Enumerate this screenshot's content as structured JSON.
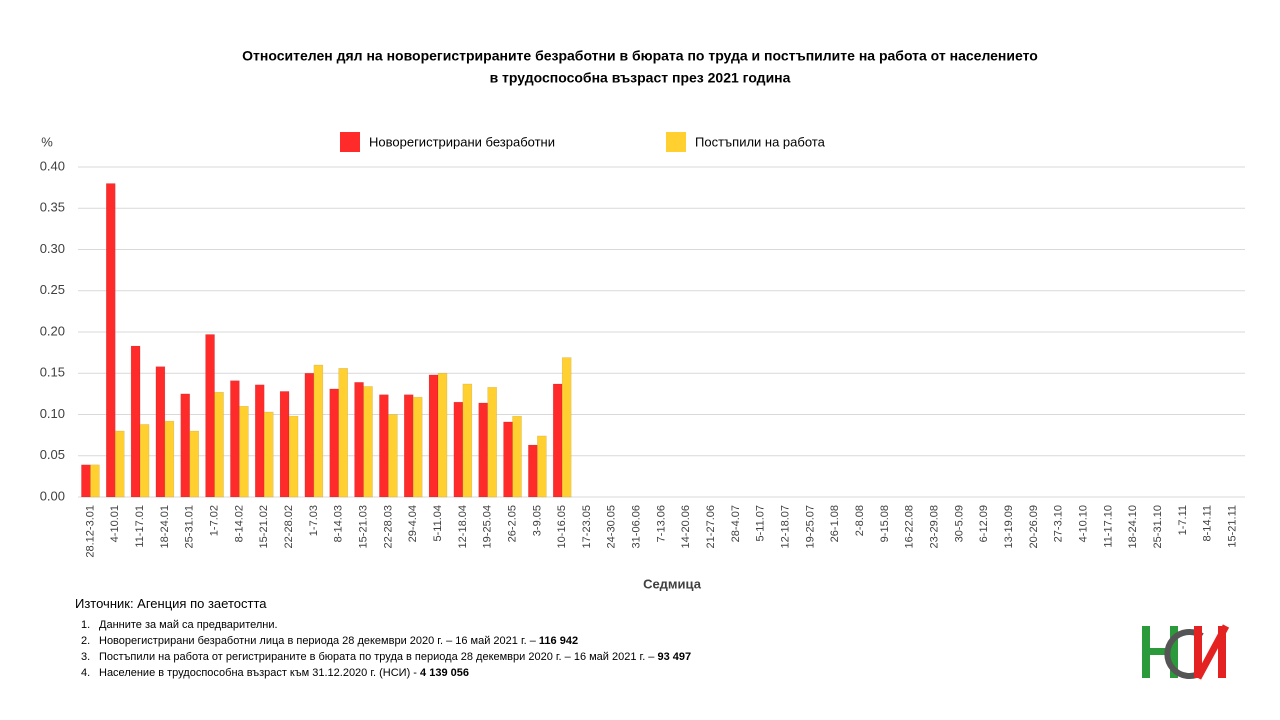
{
  "chart_data": {
    "type": "bar",
    "title": "Относителен дял на новорегистрираните безработни в бюрата по труда и постъпилите на работа от населението",
    "subtitle": "в трудоспособна възраст през 2021 година",
    "y_unit": "%",
    "x_label": "Седмица",
    "categories": [
      "28.12-3.01",
      "4-10.01",
      "11-17.01",
      "18-24.01",
      "25-31.01",
      "1-7.02",
      "8-14.02",
      "15-21.02",
      "22-28.02",
      "1-7.03",
      "8-14.03",
      "15-21.03",
      "22-28.03",
      "29-4.04",
      "5-11.04",
      "12-18.04",
      "19-25.04",
      "26-2.05",
      "3-9.05",
      "10-16.05",
      "17-23.05",
      "24-30.05",
      "31-06.06",
      "7-13.06",
      "14-20.06",
      "21-27.06",
      "28-4.07",
      "5-11.07",
      "12-18.07",
      "19-25.07",
      "26-1.08",
      "2-8.08",
      "9-15.08",
      "16-22.08",
      "23-29.08",
      "30-5.09",
      "6-12.09",
      "13-19.09",
      "20-26.09",
      "27-3.10",
      "4-10.10",
      "11-17.10",
      "18-24.10",
      "25-31.10",
      "1-7.11",
      "8-14.11",
      "15-21.11"
    ],
    "series": [
      {
        "name": "Новорегистрирани безработни",
        "color": "#ff2a2a",
        "values": [
          0.039,
          0.38,
          0.183,
          0.158,
          0.125,
          0.197,
          0.141,
          0.136,
          0.128,
          0.15,
          0.131,
          0.139,
          0.124,
          0.124,
          0.148,
          0.115,
          0.114,
          0.091,
          0.063,
          0.137,
          null,
          null,
          null,
          null,
          null,
          null,
          null,
          null,
          null,
          null,
          null,
          null,
          null,
          null,
          null,
          null,
          null,
          null,
          null,
          null,
          null,
          null,
          null,
          null,
          null,
          null,
          null
        ]
      },
      {
        "name": "Постъпили на работа",
        "color": "#ffd030",
        "values": [
          0.039,
          0.08,
          0.088,
          0.092,
          0.08,
          0.127,
          0.11,
          0.103,
          0.098,
          0.16,
          0.156,
          0.134,
          0.1,
          0.121,
          0.15,
          0.137,
          0.133,
          0.098,
          0.074,
          0.169,
          null,
          null,
          null,
          null,
          null,
          null,
          null,
          null,
          null,
          null,
          null,
          null,
          null,
          null,
          null,
          null,
          null,
          null,
          null,
          null,
          null,
          null,
          null,
          null,
          null,
          null,
          null
        ]
      }
    ],
    "ylim": [
      0,
      0.4
    ],
    "yticks": [
      {
        "value": 0,
        "label": "0.00"
      },
      {
        "value": 0.05,
        "label": "0.05"
      },
      {
        "value": 0.1,
        "label": "0.10"
      },
      {
        "value": 0.15,
        "label": "0.15"
      },
      {
        "value": 0.2,
        "label": "0.20"
      },
      {
        "value": 0.25,
        "label": "0.25"
      },
      {
        "value": 0.3,
        "label": "0.30"
      },
      {
        "value": 0.35,
        "label": "0.35"
      },
      {
        "value": 0.4,
        "label": "0.40"
      }
    ],
    "grid": true,
    "legend": "top"
  },
  "footer": {
    "source": "Източник: Агенция по заетостта",
    "notes": [
      {
        "number": "1.",
        "text": "Данните за май са предварителни."
      },
      {
        "number": "2.",
        "text": "Новорегистрирани безработни лица в периода 28 декември 2020 г. – 16 май 2021 г. –",
        "bold": "116 942"
      },
      {
        "number": "3.",
        "text": "Постъпили на работа от регистрираните в бюрата по труда в периода 28 декември 2020 г. – 16 май 2021 г. –",
        "bold": "93 497"
      },
      {
        "number": "4.",
        "text": "Население в трудоспособна възраст към 31.12.2020 г. (НСИ) -",
        "bold": "4 139 056"
      }
    ]
  }
}
